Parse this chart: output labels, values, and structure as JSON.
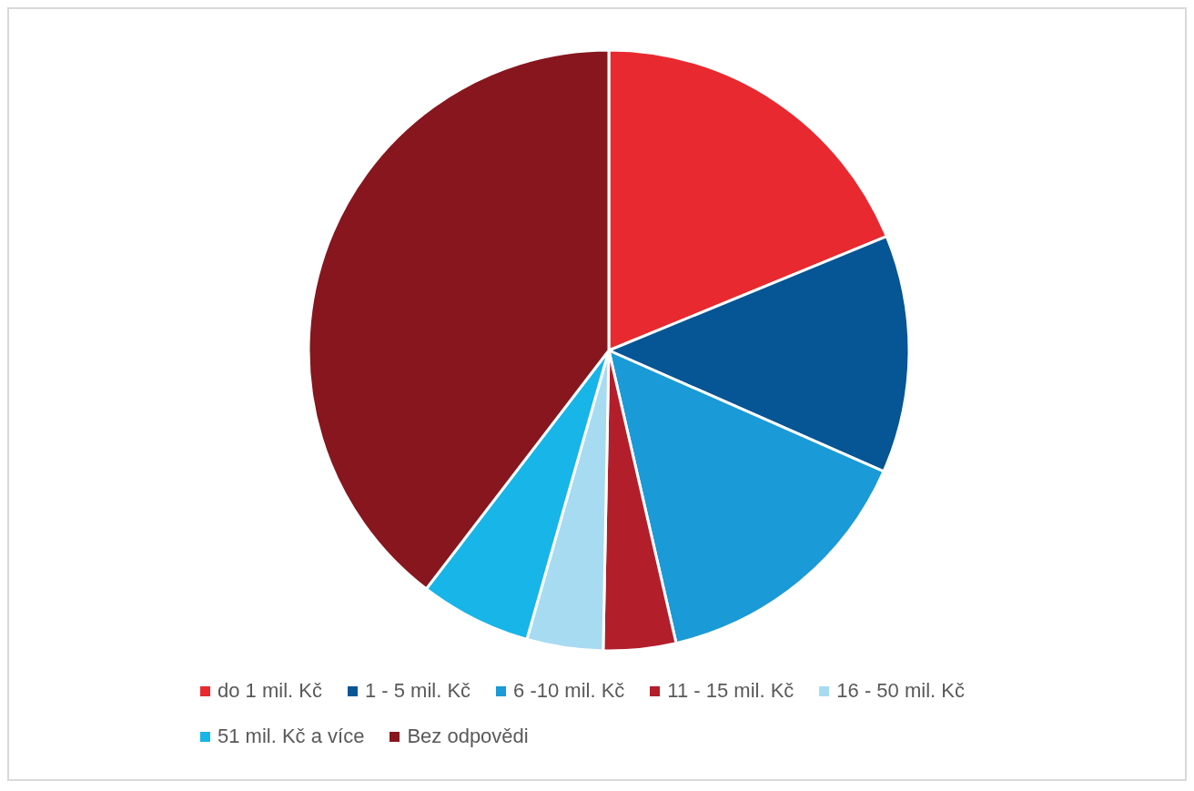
{
  "chart_data": {
    "type": "pie",
    "categories": [
      "do 1 mil. Kč",
      "1 - 5 mil. Kč",
      "6 -10 mil. Kč",
      "11 - 15 mil. Kč",
      "16 - 50 mil. Kč",
      "51 mil. Kč a více",
      "Bez odpovědi"
    ],
    "values": [
      18.8,
      12.8,
      14.8,
      3.9,
      4.1,
      6.0,
      39.6
    ],
    "colors": [
      "#e8292f",
      "#065595",
      "#1a9ad6",
      "#b31e2b",
      "#a7dbf2",
      "#17b5e8",
      "#87161e"
    ],
    "legend": "bottom"
  }
}
